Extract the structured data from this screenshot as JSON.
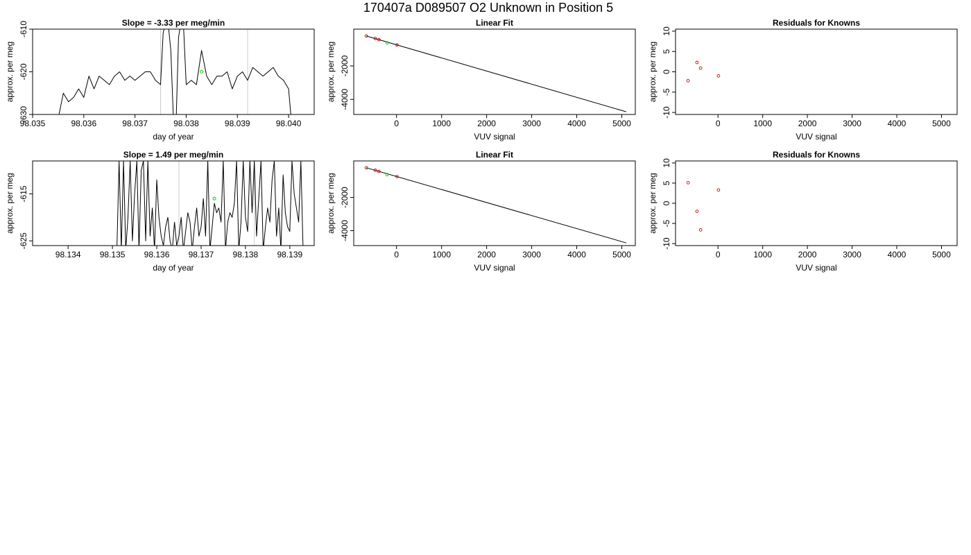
{
  "suptitle": "170407a     D089507   O2 Unknown in Position  5",
  "colors": {
    "trace": "#000000",
    "marker": "#cccccc",
    "known": "#cc0000",
    "unknown": "#00cc00",
    "frame": "#000000"
  },
  "chart_data": [
    {
      "type": "line",
      "title": "Slope =  -3.33  per meg/min",
      "xlabel": "day of year",
      "ylabel": "approx. per meg",
      "xlim": [
        98.035,
        98.0405
      ],
      "ylim": [
        -630,
        -610
      ],
      "xticks": [
        98.035,
        98.036,
        98.037,
        98.038,
        98.039,
        98.04
      ],
      "xtick_labels": [
        "98.035",
        "98.036",
        "98.037",
        "98.038",
        "98.039",
        "98.040"
      ],
      "yticks": [
        -630,
        -620,
        -610
      ],
      "ytick_labels": [
        "-630",
        "-620",
        "-610"
      ],
      "vlines": [
        98.0375,
        98.0392
      ],
      "highlight_point": {
        "x": 98.0383,
        "y": -620
      },
      "series": [
        {
          "x": [
            98.0355,
            98.0356,
            98.0357,
            98.0358,
            98.0359,
            98.036,
            98.0361,
            98.0362,
            98.0363,
            98.0364,
            98.0365,
            98.0366,
            98.0367,
            98.0368,
            98.0369,
            98.037,
            98.0371,
            98.0372,
            98.0373,
            98.0374,
            98.0375,
            98.03755,
            98.0376,
            98.03765,
            98.0377,
            98.03775,
            98.0378,
            98.03785,
            98.0379,
            98.03795,
            98.038,
            98.0381,
            98.0382,
            98.0383,
            98.0384,
            98.0385,
            98.0386,
            98.0387,
            98.0388,
            98.0389,
            98.039,
            98.0391,
            98.0392,
            98.0393,
            98.0394,
            98.0395,
            98.0396,
            98.0397,
            98.0398,
            98.0399,
            98.04,
            98.04005
          ],
          "y": [
            -631,
            -625,
            -627,
            -626,
            -624,
            -626,
            -621,
            -624,
            -621,
            -622,
            -623,
            -621,
            -620,
            -622,
            -621,
            -622,
            -621,
            -620,
            -620,
            -622,
            -623,
            -611,
            -608,
            -609,
            -615,
            -631,
            -633,
            -612,
            -608,
            -610,
            -623,
            -622,
            -623,
            -615,
            -621,
            -623,
            -621,
            -621,
            -620,
            -624,
            -621,
            -620,
            -622,
            -619,
            -620,
            -621,
            -620,
            -619,
            -621,
            -622,
            -624,
            -631
          ]
        }
      ]
    },
    {
      "type": "scatter",
      "title": "Linear Fit",
      "xlabel": "VUV signal",
      "ylabel": "approx. per meg",
      "xlim": [
        -950,
        5300
      ],
      "ylim": [
        -4900,
        200
      ],
      "xticks": [
        0,
        1000,
        2000,
        3000,
        4000,
        5000
      ],
      "xtick_labels": [
        "0",
        "1000",
        "2000",
        "3000",
        "4000",
        "5000"
      ],
      "yticks": [
        -4000,
        -2000
      ],
      "ytick_labels": [
        "-4000",
        "-2000"
      ],
      "fit_line": {
        "x": [
          -670,
          5100
        ],
        "y": [
          -210,
          -4740
        ]
      },
      "knowns": {
        "x": [
          -670,
          -470,
          -390,
          10
        ],
        "y": [
          -210,
          -360,
          -430,
          -740
        ]
      },
      "unknowns": {
        "x": [
          -210
        ],
        "y": [
          -620
        ]
      }
    },
    {
      "type": "scatter",
      "title": "Residuals for Knowns",
      "xlabel": "VUV signal",
      "ylabel": "approx. per meg",
      "xlim": [
        -950,
        5350
      ],
      "ylim": [
        -10.5,
        10.5
      ],
      "xticks": [
        0,
        1000,
        2000,
        3000,
        4000,
        5000
      ],
      "xtick_labels": [
        "0",
        "1000",
        "2000",
        "3000",
        "4000",
        "5000"
      ],
      "yticks": [
        -10,
        -5,
        0,
        5,
        10
      ],
      "ytick_labels": [
        "-10",
        "-5",
        "0",
        "5",
        "10"
      ],
      "knowns": {
        "x": [
          -670,
          -470,
          -390,
          10
        ],
        "y": [
          -2.2,
          2.3,
          0.9,
          -1.0
        ]
      }
    },
    {
      "type": "line",
      "title": "Slope =  1.49  per meg/min",
      "xlabel": "day of year",
      "ylabel": "approx. per meg",
      "xlim": [
        98.1332,
        98.13955
      ],
      "ylim": [
        -626,
        -608
      ],
      "xticks": [
        98.134,
        98.135,
        98.136,
        98.137,
        98.138,
        98.139
      ],
      "xtick_labels": [
        "98.134",
        "98.135",
        "98.136",
        "98.137",
        "98.138",
        "98.139"
      ],
      "yticks": [
        -625,
        -615
      ],
      "ytick_labels": [
        "-625",
        "-615"
      ],
      "vlines": [
        98.1365,
        98.1382
      ],
      "highlight_point": {
        "x": 98.1373,
        "y": -616
      },
      "series": [
        {
          "x": [
            98.1351,
            98.13515,
            98.1352,
            98.13525,
            98.1353,
            98.13535,
            98.1354,
            98.13545,
            98.1355,
            98.13555,
            98.1356,
            98.13565,
            98.1357,
            98.13575,
            98.1358,
            98.13585,
            98.1359,
            98.13595,
            98.136,
            98.13605,
            98.1361,
            98.13615,
            98.1362,
            98.13625,
            98.1363,
            98.13635,
            98.1364,
            98.13645,
            98.1365,
            98.13655,
            98.1366,
            98.13665,
            98.1367,
            98.13675,
            98.1368,
            98.13685,
            98.1369,
            98.13695,
            98.137,
            98.13705,
            98.1371,
            98.13715,
            98.1372,
            98.13725,
            98.1373,
            98.13735,
            98.1374,
            98.13745,
            98.1375,
            98.13755,
            98.1376,
            98.13765,
            98.1377,
            98.13775,
            98.1378,
            98.13785,
            98.1379,
            98.13795,
            98.138,
            98.13805,
            98.1381,
            98.13815,
            98.1382,
            98.13825,
            98.1383,
            98.13835,
            98.1384,
            98.13845,
            98.1385,
            98.13855,
            98.1386,
            98.13865,
            98.1387,
            98.13875,
            98.1388,
            98.13885,
            98.1389,
            98.13895,
            98.139,
            98.13905,
            98.1391,
            98.13915,
            98.1392,
            98.13925,
            98.1393
          ],
          "y": [
            -627,
            -608,
            -627,
            -608,
            -627,
            -620,
            -608,
            -625,
            -615,
            -608,
            -627,
            -610,
            -608,
            -625,
            -608,
            -624,
            -618,
            -627,
            -612,
            -620,
            -624,
            -626,
            -622,
            -620,
            -625,
            -627,
            -621,
            -626,
            -624,
            -620,
            -627,
            -623,
            -619,
            -621,
            -627,
            -622,
            -618,
            -624,
            -622,
            -616,
            -624,
            -608,
            -627,
            -622,
            -617,
            -619,
            -618,
            -621,
            -608,
            -627,
            -621,
            -619,
            -620,
            -617,
            -608,
            -627,
            -621,
            -608,
            -620,
            -623,
            -608,
            -619,
            -608,
            -624,
            -616,
            -608,
            -627,
            -622,
            -618,
            -621,
            -612,
            -608,
            -624,
            -618,
            -627,
            -611,
            -619,
            -622,
            -623,
            -608,
            -615,
            -618,
            -621,
            -608,
            -627
          ]
        }
      ]
    },
    {
      "type": "scatter",
      "title": "Linear Fit",
      "xlabel": "VUV signal",
      "ylabel": "approx. per meg",
      "xlim": [
        -950,
        5300
      ],
      "ylim": [
        -4900,
        200
      ],
      "xticks": [
        0,
        1000,
        2000,
        3000,
        4000,
        5000
      ],
      "xtick_labels": [
        "0",
        "1000",
        "2000",
        "3000",
        "4000",
        "5000"
      ],
      "yticks": [
        -4000,
        -2000
      ],
      "ytick_labels": [
        "-4000",
        "-2000"
      ],
      "fit_line": {
        "x": [
          -670,
          5100
        ],
        "y": [
          -210,
          -4740
        ]
      },
      "knowns": {
        "x": [
          -670,
          -470,
          -390,
          10
        ],
        "y": [
          -210,
          -360,
          -430,
          -740
        ]
      },
      "unknowns": {
        "x": [
          -210
        ],
        "y": [
          -620
        ]
      }
    },
    {
      "type": "scatter",
      "title": "Residuals for Knowns",
      "xlabel": "VUV signal",
      "ylabel": "approx. per meg",
      "xlim": [
        -950,
        5350
      ],
      "ylim": [
        -10.5,
        10.5
      ],
      "xticks": [
        0,
        1000,
        2000,
        3000,
        4000,
        5000
      ],
      "xtick_labels": [
        "0",
        "1000",
        "2000",
        "3000",
        "4000",
        "5000"
      ],
      "yticks": [
        -10,
        -5,
        0,
        5,
        10
      ],
      "ytick_labels": [
        "-10",
        "-5",
        "0",
        "5",
        "10"
      ],
      "knowns": {
        "x": [
          -670,
          -470,
          -390,
          10
        ],
        "y": [
          5.1,
          -2.0,
          -6.6,
          3.3
        ]
      }
    }
  ]
}
